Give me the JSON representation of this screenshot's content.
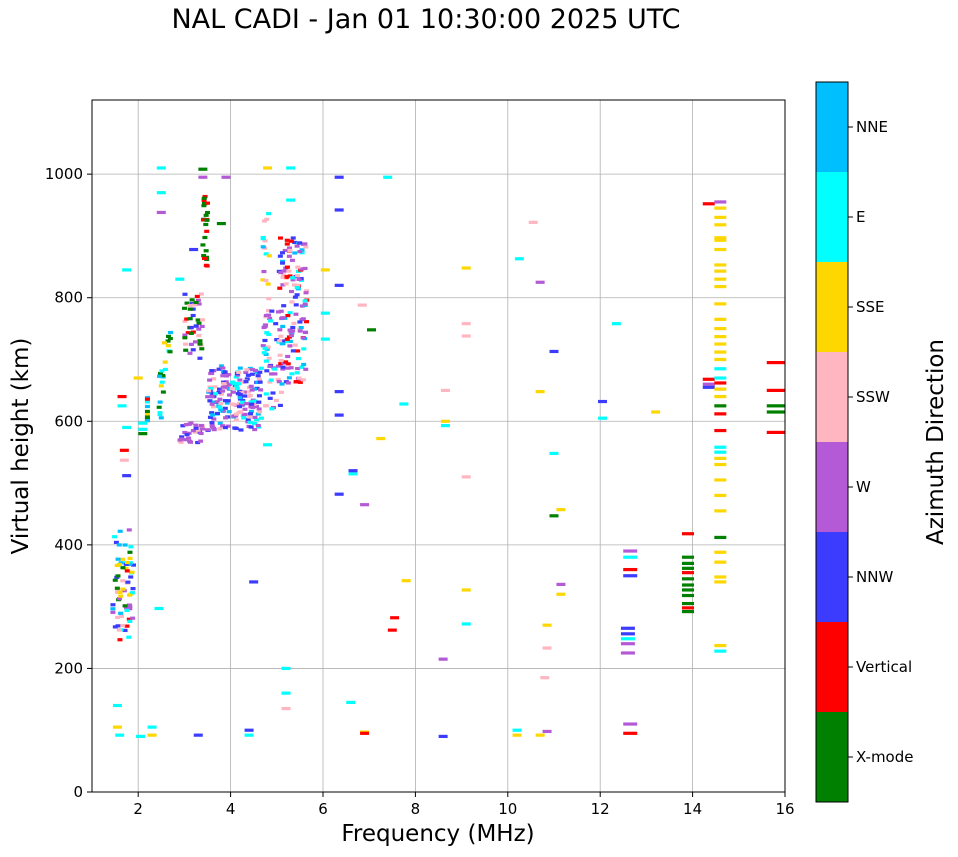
{
  "chart_data": {
    "type": "scatter",
    "title": "NAL CADI - Jan 01 10:30:00 2025 UTC",
    "xlabel": "Frequency (MHz)",
    "ylabel": "Virtual height (km)",
    "xlim": [
      1,
      16
    ],
    "ylim": [
      0,
      1120
    ],
    "xticks": [
      2,
      4,
      6,
      8,
      10,
      12,
      14,
      16
    ],
    "yticks": [
      0,
      200,
      400,
      600,
      800,
      1000
    ],
    "grid": true,
    "colorbar": {
      "label": "Azimuth Direction",
      "categories": [
        {
          "name": "X-mode",
          "color": "#008000"
        },
        {
          "name": "Vertical",
          "color": "#ff0000"
        },
        {
          "name": "NNW",
          "color": "#3c3cff"
        },
        {
          "name": "W",
          "color": "#b55ad6"
        },
        {
          "name": "SSW",
          "color": "#ffb6c1"
        },
        {
          "name": "SSE",
          "color": "#ffd700"
        },
        {
          "name": "E",
          "color": "#00ffff"
        },
        {
          "name": "NNE",
          "color": "#00bfff"
        }
      ]
    },
    "points": [
      {
        "f": 1.55,
        "h": 105,
        "c": "SSE"
      },
      {
        "f": 1.6,
        "h": 92,
        "c": "E"
      },
      {
        "f": 1.55,
        "h": 140,
        "c": "E"
      },
      {
        "f": 2.05,
        "h": 90,
        "c": "E"
      },
      {
        "f": 2.3,
        "h": 92,
        "c": "SSE"
      },
      {
        "f": 2.3,
        "h": 105,
        "c": "E"
      },
      {
        "f": 3.3,
        "h": 92,
        "c": "NNW"
      },
      {
        "f": 4.4,
        "h": 92,
        "c": "E"
      },
      {
        "f": 4.4,
        "h": 100,
        "c": "NNW"
      },
      {
        "f": 6.9,
        "h": 97,
        "c": "SSE"
      },
      {
        "f": 6.9,
        "h": 95,
        "c": "Vertical"
      },
      {
        "f": 8.6,
        "h": 90,
        "c": "NNW"
      },
      {
        "f": 10.2,
        "h": 92,
        "c": "SSE"
      },
      {
        "f": 10.2,
        "h": 100,
        "c": "E"
      },
      {
        "f": 10.7,
        "h": 92,
        "c": "SSE"
      },
      {
        "f": 10.85,
        "h": 98,
        "c": "W"
      },
      {
        "f": 12.65,
        "h": 95,
        "c": "Vertical"
      },
      {
        "f": 12.65,
        "h": 110,
        "c": "W"
      },
      {
        "f": 5.2,
        "h": 135,
        "c": "SSW"
      },
      {
        "f": 5.2,
        "h": 160,
        "c": "E"
      },
      {
        "f": 5.2,
        "h": 200,
        "c": "E"
      },
      {
        "f": 6.6,
        "h": 145,
        "c": "E"
      },
      {
        "f": 8.6,
        "h": 215,
        "c": "W"
      },
      {
        "f": 10.8,
        "h": 185,
        "c": "SSW"
      },
      {
        "f": 10.85,
        "h": 233,
        "c": "SSW"
      },
      {
        "f": 10.85,
        "h": 270,
        "c": "SSE"
      },
      {
        "f": 9.1,
        "h": 272,
        "c": "E"
      },
      {
        "f": 9.1,
        "h": 327,
        "c": "SSE"
      },
      {
        "f": 7.5,
        "h": 262,
        "c": "Vertical"
      },
      {
        "f": 7.55,
        "h": 282,
        "c": "Vertical"
      },
      {
        "f": 7.8,
        "h": 342,
        "c": "SSE"
      },
      {
        "f": 11.15,
        "h": 320,
        "c": "SSE"
      },
      {
        "f": 11.15,
        "h": 336,
        "c": "W"
      },
      {
        "f": 11.15,
        "h": 457,
        "c": "SSE"
      },
      {
        "f": 11.0,
        "h": 447,
        "c": "X-mode"
      },
      {
        "f": 9.1,
        "h": 510,
        "c": "SSW"
      },
      {
        "f": 6.9,
        "h": 465,
        "c": "W"
      },
      {
        "f": 6.65,
        "h": 515,
        "c": "E"
      },
      {
        "f": 6.65,
        "h": 520,
        "c": "NNW"
      },
      {
        "f": 6.35,
        "h": 482,
        "c": "NNW"
      },
      {
        "f": 4.8,
        "h": 562,
        "c": "E"
      },
      {
        "f": 4.5,
        "h": 340,
        "c": "NNW"
      },
      {
        "f": 2.45,
        "h": 297,
        "c": "E"
      },
      {
        "f": 11.0,
        "h": 548,
        "c": "E"
      },
      {
        "f": 7.25,
        "h": 572,
        "c": "SSE"
      },
      {
        "f": 12.6,
        "h": 225,
        "c": "W"
      },
      {
        "f": 12.6,
        "h": 240,
        "c": "W"
      },
      {
        "f": 12.6,
        "h": 248,
        "c": "E"
      },
      {
        "f": 12.6,
        "h": 256,
        "c": "NNW"
      },
      {
        "f": 12.6,
        "h": 265,
        "c": "NNW"
      },
      {
        "f": 12.65,
        "h": 350,
        "c": "NNW"
      },
      {
        "f": 12.65,
        "h": 360,
        "c": "Vertical"
      },
      {
        "f": 12.65,
        "h": 380,
        "c": "E"
      },
      {
        "f": 12.65,
        "h": 390,
        "c": "W"
      },
      {
        "f": 12.05,
        "h": 605,
        "c": "E"
      },
      {
        "f": 12.05,
        "h": 632,
        "c": "NNW"
      },
      {
        "f": 12.35,
        "h": 758,
        "c": "E"
      },
      {
        "f": 13.2,
        "h": 615,
        "c": "SSE"
      },
      {
        "f": 10.7,
        "h": 648,
        "c": "SSE"
      },
      {
        "f": 11.0,
        "h": 713,
        "c": "NNW"
      },
      {
        "f": 10.7,
        "h": 825,
        "c": "W"
      },
      {
        "f": 10.55,
        "h": 922,
        "c": "SSW"
      },
      {
        "f": 10.25,
        "h": 863,
        "c": "E"
      },
      {
        "f": 9.1,
        "h": 848,
        "c": "SSE"
      },
      {
        "f": 9.1,
        "h": 758,
        "c": "SSW"
      },
      {
        "f": 9.1,
        "h": 738,
        "c": "SSW"
      },
      {
        "f": 8.65,
        "h": 650,
        "c": "SSW"
      },
      {
        "f": 8.65,
        "h": 600,
        "c": "SSE"
      },
      {
        "f": 8.65,
        "h": 593,
        "c": "E"
      },
      {
        "f": 7.75,
        "h": 628,
        "c": "E"
      },
      {
        "f": 7.05,
        "h": 748,
        "c": "X-mode"
      },
      {
        "f": 6.85,
        "h": 788,
        "c": "SSW"
      },
      {
        "f": 6.35,
        "h": 610,
        "c": "NNW"
      },
      {
        "f": 6.35,
        "h": 648,
        "c": "NNW"
      },
      {
        "f": 6.35,
        "h": 820,
        "c": "NNW"
      },
      {
        "f": 6.35,
        "h": 942,
        "c": "NNW"
      },
      {
        "f": 6.35,
        "h": 995,
        "c": "NNW"
      },
      {
        "f": 7.4,
        "h": 995,
        "c": "E"
      },
      {
        "f": 6.05,
        "h": 845,
        "c": "SSE"
      },
      {
        "f": 6.05,
        "h": 775,
        "c": "E"
      },
      {
        "f": 6.05,
        "h": 733,
        "c": "E"
      },
      {
        "f": 5.3,
        "h": 958,
        "c": "E"
      },
      {
        "f": 5.3,
        "h": 1010,
        "c": "E"
      },
      {
        "f": 4.8,
        "h": 1010,
        "c": "SSE"
      },
      {
        "f": 3.9,
        "h": 995,
        "c": "W"
      },
      {
        "f": 3.4,
        "h": 995,
        "c": "W"
      },
      {
        "f": 3.4,
        "h": 1008,
        "c": "X-mode"
      },
      {
        "f": 2.5,
        "h": 1010,
        "c": "E"
      },
      {
        "f": 2.5,
        "h": 970,
        "c": "E"
      },
      {
        "f": 2.5,
        "h": 938,
        "c": "W"
      },
      {
        "f": 1.75,
        "h": 845,
        "c": "E"
      },
      {
        "f": 3.8,
        "h": 920,
        "c": "X-mode"
      },
      {
        "f": 3.2,
        "h": 878,
        "c": "NNW"
      },
      {
        "f": 2.9,
        "h": 830,
        "c": "E"
      },
      {
        "f": 2.0,
        "h": 670,
        "c": "SSE"
      },
      {
        "f": 1.75,
        "h": 590,
        "c": "E"
      },
      {
        "f": 1.7,
        "h": 553,
        "c": "Vertical"
      },
      {
        "f": 1.7,
        "h": 537,
        "c": "SSW"
      },
      {
        "f": 1.75,
        "h": 512,
        "c": "NNW"
      },
      {
        "f": 1.65,
        "h": 640,
        "c": "Vertical"
      },
      {
        "f": 1.65,
        "h": 625,
        "c": "E"
      },
      {
        "f": 2.1,
        "h": 597,
        "c": "E"
      },
      {
        "f": 2.1,
        "h": 587,
        "c": "E"
      },
      {
        "f": 2.1,
        "h": 580,
        "c": "X-mode"
      },
      {
        "f": 14.35,
        "h": 952,
        "c": "Vertical"
      },
      {
        "f": 14.35,
        "h": 668,
        "c": "Vertical"
      },
      {
        "f": 14.35,
        "h": 660,
        "c": "W"
      },
      {
        "f": 14.35,
        "h": 655,
        "c": "NNW"
      },
      {
        "f": 14.6,
        "h": 670,
        "c": "E"
      },
      {
        "f": 14.6,
        "h": 685,
        "c": "E"
      },
      {
        "f": 14.6,
        "h": 662,
        "c": "Vertical"
      },
      {
        "f": 14.6,
        "h": 612,
        "c": "Vertical"
      },
      {
        "f": 14.6,
        "h": 585,
        "c": "Vertical"
      },
      {
        "f": 14.6,
        "h": 412,
        "c": "X-mode"
      },
      {
        "f": 14.6,
        "h": 625,
        "c": "X-mode"
      },
      {
        "f": 14.6,
        "h": 228,
        "c": "E"
      },
      {
        "f": 14.6,
        "h": 237,
        "c": "SSE"
      },
      {
        "f": 14.6,
        "h": 340,
        "c": "SSE"
      },
      {
        "f": 14.6,
        "h": 348,
        "c": "SSE"
      },
      {
        "f": 14.6,
        "h": 372,
        "c": "SSE"
      },
      {
        "f": 14.6,
        "h": 388,
        "c": "SSE"
      },
      {
        "f": 14.6,
        "h": 455,
        "c": "SSE"
      },
      {
        "f": 14.6,
        "h": 480,
        "c": "SSE"
      },
      {
        "f": 14.6,
        "h": 505,
        "c": "SSE"
      },
      {
        "f": 14.6,
        "h": 530,
        "c": "SSE"
      },
      {
        "f": 14.6,
        "h": 540,
        "c": "SSE"
      },
      {
        "f": 14.6,
        "h": 550,
        "c": "E"
      },
      {
        "f": 14.6,
        "h": 558,
        "c": "E"
      },
      {
        "f": 14.6,
        "h": 640,
        "c": "SSE"
      },
      {
        "f": 14.6,
        "h": 652,
        "c": "SSE"
      },
      {
        "f": 14.6,
        "h": 700,
        "c": "SSE"
      },
      {
        "f": 14.6,
        "h": 712,
        "c": "SSE"
      },
      {
        "f": 14.6,
        "h": 725,
        "c": "SSE"
      },
      {
        "f": 14.6,
        "h": 737,
        "c": "SSE"
      },
      {
        "f": 14.6,
        "h": 750,
        "c": "SSE"
      },
      {
        "f": 14.6,
        "h": 765,
        "c": "SSE"
      },
      {
        "f": 14.6,
        "h": 790,
        "c": "SSE"
      },
      {
        "f": 14.6,
        "h": 818,
        "c": "SSE"
      },
      {
        "f": 14.6,
        "h": 830,
        "c": "SSE"
      },
      {
        "f": 14.6,
        "h": 843,
        "c": "SSE"
      },
      {
        "f": 14.6,
        "h": 853,
        "c": "SSE"
      },
      {
        "f": 14.6,
        "h": 878,
        "c": "SSE"
      },
      {
        "f": 14.6,
        "h": 893,
        "c": "SSE"
      },
      {
        "f": 14.6,
        "h": 897,
        "c": "SSE"
      },
      {
        "f": 14.6,
        "h": 918,
        "c": "SSE"
      },
      {
        "f": 14.6,
        "h": 930,
        "c": "SSE"
      },
      {
        "f": 14.6,
        "h": 945,
        "c": "SSE"
      },
      {
        "f": 14.6,
        "h": 955,
        "c": "W"
      },
      {
        "f": 13.9,
        "h": 292,
        "c": "X-mode"
      },
      {
        "f": 13.9,
        "h": 298,
        "c": "Vertical"
      },
      {
        "f": 13.9,
        "h": 305,
        "c": "X-mode"
      },
      {
        "f": 13.9,
        "h": 318,
        "c": "X-mode"
      },
      {
        "f": 13.9,
        "h": 327,
        "c": "X-mode"
      },
      {
        "f": 13.9,
        "h": 335,
        "c": "X-mode"
      },
      {
        "f": 13.9,
        "h": 345,
        "c": "X-mode"
      },
      {
        "f": 13.9,
        "h": 355,
        "c": "Vertical"
      },
      {
        "f": 13.9,
        "h": 362,
        "c": "X-mode"
      },
      {
        "f": 13.9,
        "h": 370,
        "c": "X-mode"
      },
      {
        "f": 13.9,
        "h": 380,
        "c": "X-mode"
      },
      {
        "f": 13.9,
        "h": 418,
        "c": "Vertical"
      },
      {
        "f": 15.8,
        "h": 582,
        "c": "Vertical"
      },
      {
        "f": 15.8,
        "h": 615,
        "c": "X-mode"
      },
      {
        "f": 15.8,
        "h": 625,
        "c": "X-mode"
      },
      {
        "f": 15.8,
        "h": 650,
        "c": "Vertical"
      },
      {
        "f": 15.8,
        "h": 695,
        "c": "Vertical"
      }
    ],
    "clusters": [
      {
        "f": [
          1.45,
          1.9
        ],
        "h": [
          245,
          425
        ],
        "n": 70,
        "colors": [
          "E",
          "E",
          "NNE",
          "SSE",
          "W",
          "Vertical",
          "NNW",
          "SSW",
          "X-mode"
        ]
      },
      {
        "f": 2.2,
        "h": [
          600,
          640
        ],
        "n": 10,
        "colors": [
          "SSE",
          "Vertical",
          "E",
          "NNE",
          "X-mode"
        ]
      },
      {
        "f": [
          2.45,
          2.55
        ],
        "h": [
          600,
          690
        ],
        "n": 14,
        "colors": [
          "E",
          "NNE",
          "SSE",
          "X-mode"
        ]
      },
      {
        "f": [
          2.55,
          2.7
        ],
        "h": [
          680,
          760
        ],
        "n": 10,
        "colors": [
          "E",
          "X-mode",
          "SSE",
          "NNE"
        ]
      },
      {
        "f": [
          2.9,
          3.4
        ],
        "h": [
          565,
          600
        ],
        "n": 30,
        "colors": [
          "W",
          "NNW",
          "W",
          "SSW"
        ]
      },
      {
        "f": [
          3.0,
          3.4
        ],
        "h": [
          700,
          810
        ],
        "n": 45,
        "colors": [
          "X-mode",
          "X-mode",
          "W",
          "NNW",
          "Vertical",
          "SSW"
        ]
      },
      {
        "f": [
          3.4,
          3.5
        ],
        "h": [
          850,
          965
        ],
        "n": 24,
        "colors": [
          "X-mode",
          "X-mode",
          "Vertical"
        ]
      },
      {
        "f": [
          3.5,
          4.7
        ],
        "h": [
          585,
          690
        ],
        "n": 190,
        "colors": [
          "W",
          "W",
          "NNW",
          "NNW",
          "E",
          "NNE",
          "SSW"
        ]
      },
      {
        "f": [
          4.7,
          4.85
        ],
        "h": [
          700,
          950
        ],
        "n": 24,
        "colors": [
          "E",
          "SSE",
          "W",
          "SSW",
          "NNE"
        ]
      },
      {
        "f": [
          4.7,
          5.1
        ],
        "h": [
          620,
          780
        ],
        "n": 40,
        "colors": [
          "W",
          "NNW",
          "E",
          "SSW"
        ]
      },
      {
        "f": [
          5.05,
          5.65
        ],
        "h": [
          660,
          900
        ],
        "n": 140,
        "colors": [
          "W",
          "W",
          "NNW",
          "SSW",
          "E",
          "Vertical",
          "NNE"
        ]
      }
    ]
  }
}
